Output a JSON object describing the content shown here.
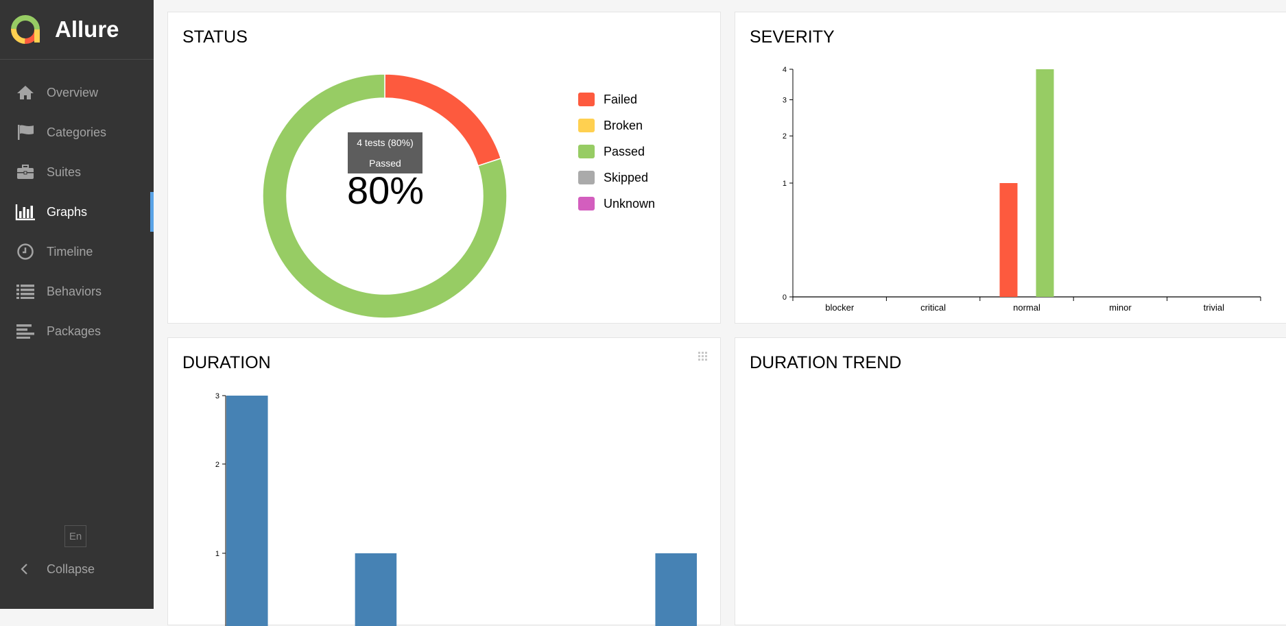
{
  "app": {
    "name": "Allure"
  },
  "sidebar": {
    "items": [
      {
        "label": "Overview",
        "icon": "home-icon"
      },
      {
        "label": "Categories",
        "icon": "flag-icon"
      },
      {
        "label": "Suites",
        "icon": "briefcase-icon"
      },
      {
        "label": "Graphs",
        "icon": "bar-chart-icon",
        "active": true
      },
      {
        "label": "Timeline",
        "icon": "clock-icon"
      },
      {
        "label": "Behaviors",
        "icon": "list-icon"
      },
      {
        "label": "Packages",
        "icon": "align-left-icon"
      }
    ],
    "language": "En",
    "collapse_label": "Collapse"
  },
  "widgets": {
    "status": {
      "title": "STATUS",
      "tooltip_line1": "4 tests (80%)",
      "tooltip_line2": "Passed",
      "percent": "80%",
      "legend": [
        {
          "label": "Failed",
          "color": "#fd5a3e"
        },
        {
          "label": "Broken",
          "color": "#ffd050"
        },
        {
          "label": "Passed",
          "color": "#97cc64"
        },
        {
          "label": "Skipped",
          "color": "#aaaaaa"
        },
        {
          "label": "Unknown",
          "color": "#d35ebe"
        }
      ]
    },
    "severity": {
      "title": "SEVERITY"
    },
    "duration": {
      "title": "DURATION"
    },
    "duration_trend": {
      "title": "DURATION TREND"
    }
  },
  "chart_data": [
    {
      "type": "pie",
      "categories": [
        "Failed",
        "Passed"
      ],
      "values": [
        1,
        4
      ],
      "colors": [
        "#fd5a3e",
        "#97cc64"
      ],
      "title": "STATUS"
    },
    {
      "type": "bar",
      "title": "SEVERITY",
      "categories": [
        "blocker",
        "critical",
        "normal",
        "minor",
        "trivial"
      ],
      "series": [
        {
          "values": [
            0,
            0,
            1,
            0,
            0
          ],
          "color": "#fd5a3e"
        },
        {
          "values": [
            0,
            0,
            4,
            0,
            0
          ],
          "color": "#97cc64"
        }
      ],
      "yticks": [
        "0",
        "1",
        "2",
        "3",
        "4"
      ],
      "ylim": [
        0,
        4
      ],
      "yscale": "sqrt"
    },
    {
      "type": "bar",
      "title": "DURATION",
      "values": [
        3,
        1,
        1
      ],
      "bin_index": [
        0,
        3,
        10
      ],
      "bins": 11,
      "color": "#4682b4",
      "yticks": [
        "1",
        "2",
        "3"
      ],
      "ylim": [
        0,
        3
      ],
      "yscale": "sqrt"
    }
  ]
}
